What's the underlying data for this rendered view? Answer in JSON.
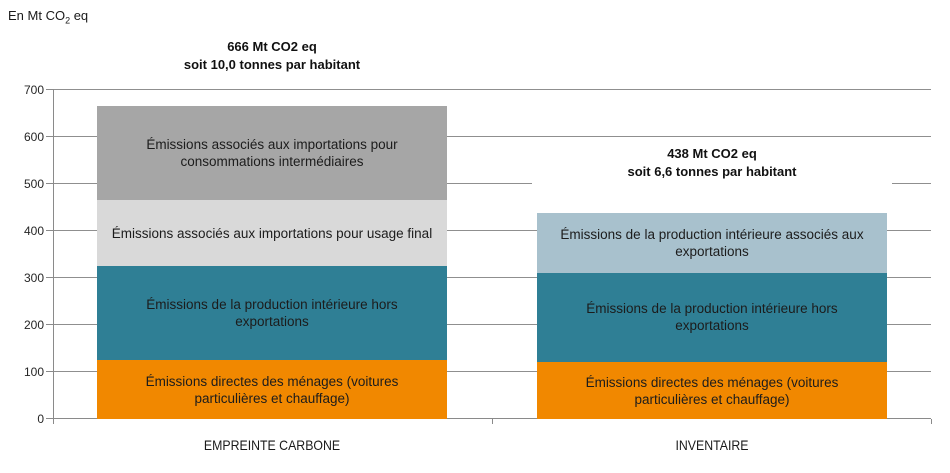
{
  "axis_title": {
    "prefix": "En Mt CO",
    "sub": "2",
    "suffix": " eq"
  },
  "colors": {
    "orange": "#F18800",
    "teal": "#2F7F95",
    "light_gray": "#D9D9D9",
    "gray": "#A6A6A6",
    "light_blue": "#A8C1CD",
    "gridline": "#8F8F8F",
    "axis": "#8A8A8A",
    "text": "#1C1C1C"
  },
  "chart_data": {
    "type": "bar",
    "stacked": true,
    "title": "",
    "unit_label": "En Mt CO2 eq",
    "ylabel": "En Mt CO2 eq",
    "xlabel": "",
    "ylim": [
      0,
      700
    ],
    "yticks": [
      0,
      100,
      200,
      300,
      400,
      500,
      600,
      700
    ],
    "grid": true,
    "legend_position": "labels-inside-bars",
    "segment_order": "bottom-to-top",
    "categories": [
      "EMPREINTE CARBONE",
      "INVENTAIRE"
    ],
    "bars": [
      {
        "category": "EMPREINTE CARBONE",
        "total": 666,
        "annotation": [
          "666 Mt CO2 eq",
          "soit 10,0 tonnes par habitant"
        ],
        "segments": [
          {
            "label": "Émissions directes des ménages (voitures particulières et chauffage)",
            "value": 125,
            "color": "#F18800"
          },
          {
            "label": "Émissions de la production intérieure hors exportations",
            "value": 200,
            "color": "#2F7F95"
          },
          {
            "label": "Émissions associés aux importations pour usage final",
            "value": 141,
            "color": "#D9D9D9"
          },
          {
            "label": "Émissions associés aux importations pour consommations intermédiaires",
            "value": 200,
            "color": "#A6A6A6"
          }
        ]
      },
      {
        "category": "INVENTAIRE",
        "total": 438,
        "annotation": [
          "438 Mt CO2 eq",
          "soit 6,6 tonnes par habitant"
        ],
        "segments": [
          {
            "label": "Émissions directes des ménages (voitures particulières et chauffage)",
            "value": 121,
            "color": "#F18800"
          },
          {
            "label": "Émissions de la production intérieure hors exportations",
            "value": 190,
            "color": "#2F7F95"
          },
          {
            "label": "Émissions de la production intérieure associés aux exportations",
            "value": 127,
            "color": "#A8C1CD"
          }
        ]
      }
    ]
  }
}
